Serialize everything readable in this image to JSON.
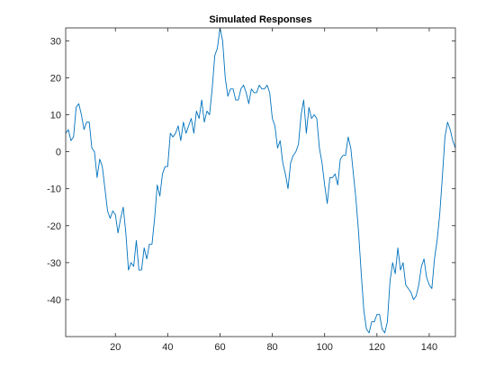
{
  "chart_data": {
    "type": "line",
    "title": "Simulated Responses",
    "xlabel": "",
    "ylabel": "",
    "xlim": [
      1,
      150
    ],
    "ylim": [
      -50,
      33.5
    ],
    "xticks": [
      20,
      40,
      60,
      80,
      100,
      120,
      140
    ],
    "yticks": [
      -40,
      -30,
      -20,
      -10,
      0,
      10,
      20,
      30
    ],
    "grid": false,
    "legend": "none",
    "line_color": "#0072bd",
    "series": [
      {
        "x": [
          1,
          2,
          3,
          4,
          5,
          6,
          7,
          8,
          9,
          10,
          11,
          12,
          13,
          14,
          15,
          16,
          17,
          18,
          19,
          20,
          21,
          22,
          23,
          24,
          25,
          26,
          27,
          28,
          29,
          30,
          31,
          32,
          33,
          34,
          35,
          36,
          37,
          38,
          39,
          40,
          41,
          42,
          43,
          44,
          45,
          46,
          47,
          48,
          49,
          50,
          51,
          52,
          53,
          54,
          55,
          56,
          57,
          58,
          59,
          60,
          61,
          62,
          63,
          64,
          65,
          66,
          67,
          68,
          69,
          70,
          71,
          72,
          73,
          74,
          75,
          76,
          77,
          78,
          79,
          80,
          81,
          82,
          83,
          84,
          85,
          86,
          87,
          88,
          89,
          90,
          91,
          92,
          93,
          94,
          95,
          96,
          97,
          98,
          99,
          100,
          101,
          102,
          103,
          104,
          105,
          106,
          107,
          108,
          109,
          110,
          111,
          112,
          113,
          114,
          115,
          116,
          117,
          118,
          119,
          120,
          121,
          122,
          123,
          124,
          125,
          126,
          127,
          128,
          129,
          130,
          131,
          132,
          133,
          134,
          135,
          136,
          137,
          138,
          139,
          140,
          141,
          142,
          143,
          144,
          145,
          146,
          147,
          148,
          149,
          150
        ],
        "values": [
          5,
          6,
          3,
          4,
          12,
          13,
          10,
          6,
          8,
          8,
          1,
          0,
          -7,
          -2,
          -4,
          -10,
          -16,
          -18,
          -16,
          -17,
          -22,
          -18,
          -15,
          -22,
          -32,
          -30,
          -31,
          -24,
          -32,
          -32,
          -26,
          -29,
          -25,
          -25,
          -18,
          -9,
          -12,
          -6,
          -4,
          -4,
          5,
          4,
          5,
          7,
          3,
          8,
          5,
          7,
          9,
          5,
          11,
          9,
          14,
          8,
          11,
          10,
          17,
          26,
          28,
          33.5,
          30,
          20,
          15,
          17,
          17,
          14,
          14,
          17,
          18,
          16,
          13,
          17,
          16,
          16,
          18,
          17,
          17,
          18,
          16,
          9,
          7,
          1,
          3,
          -3,
          -6,
          -10,
          -3,
          -1,
          0,
          2,
          10,
          14,
          5,
          12,
          9,
          10,
          9,
          1,
          -3,
          -9,
          -14,
          -7,
          -7,
          -6,
          -9,
          -2,
          -1,
          -1,
          4,
          1,
          -6,
          -13,
          -22,
          -33,
          -43,
          -48,
          -49,
          -46,
          -46,
          -44,
          -44,
          -48,
          -49,
          -46,
          -35,
          -30,
          -33,
          -26,
          -32,
          -30,
          -36,
          -37,
          -38,
          -40,
          -39,
          -36,
          -31,
          -29,
          -34,
          -36,
          -37,
          -29,
          -24,
          -17,
          -7,
          4,
          8,
          6,
          3,
          1
        ]
      }
    ]
  }
}
